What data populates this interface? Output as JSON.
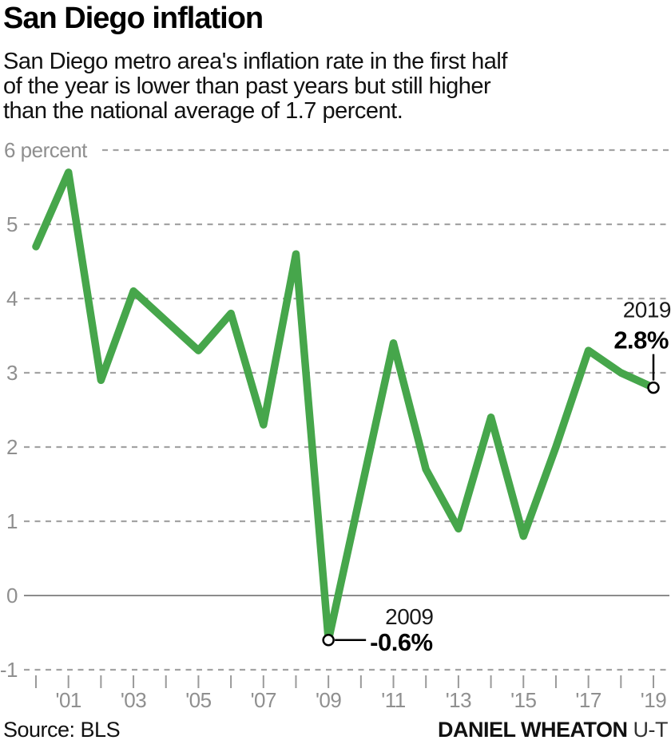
{
  "header": {
    "title": "San Diego inflation",
    "subtitle_lines": [
      "San Diego metro area's inflation rate in the first half",
      "of the year is lower than past years but still higher",
      "than the national average of 1.7 percent."
    ]
  },
  "chart_data": {
    "type": "line",
    "title": "San Diego inflation",
    "ylabel": "percent",
    "xlabel": "",
    "ylim": [
      -1,
      6
    ],
    "grid": "horizontal dashed, solid line at 0, legend none",
    "line_color": "#46a64b",
    "grid_color": "#a3a3a3",
    "zero_line_color": "#8c8c8c",
    "axis_label_color": "#8f8f8f",
    "x": [
      2000,
      2001,
      2002,
      2003,
      2004,
      2005,
      2006,
      2007,
      2008,
      2009,
      2010,
      2011,
      2012,
      2013,
      2014,
      2015,
      2016,
      2017,
      2018,
      2019
    ],
    "values": [
      4.7,
      5.7,
      2.9,
      4.1,
      3.7,
      3.3,
      3.8,
      2.3,
      4.6,
      -0.6,
      1.4,
      3.4,
      1.7,
      0.9,
      2.4,
      0.8,
      2.0,
      3.3,
      3.0,
      2.8
    ],
    "y_ticks": [
      6,
      5,
      4,
      3,
      2,
      1,
      0,
      -1
    ],
    "y_tick_labels": [
      "6 percent",
      "5",
      "4",
      "3",
      "2",
      "1",
      "0",
      "-1"
    ],
    "x_tick_years": [
      2001,
      2003,
      2005,
      2007,
      2009,
      2011,
      2013,
      2015,
      2017,
      2019
    ],
    "x_tick_labels": [
      "'01",
      "'03",
      "'05",
      "'07",
      "'09",
      "'11",
      "'13",
      "'15",
      "'17",
      "'19"
    ],
    "annotations": [
      {
        "year": 2009,
        "value": -0.6,
        "year_label": "2009",
        "value_label": "-0.6%",
        "placement": "right"
      },
      {
        "year": 2019,
        "value": 2.8,
        "year_label": "2019",
        "value_label": "2.8%",
        "placement": "above"
      }
    ]
  },
  "footer": {
    "source": "Source: BLS",
    "credit_bold": "DANIEL WHEATON",
    "credit_suffix": " U-T"
  }
}
